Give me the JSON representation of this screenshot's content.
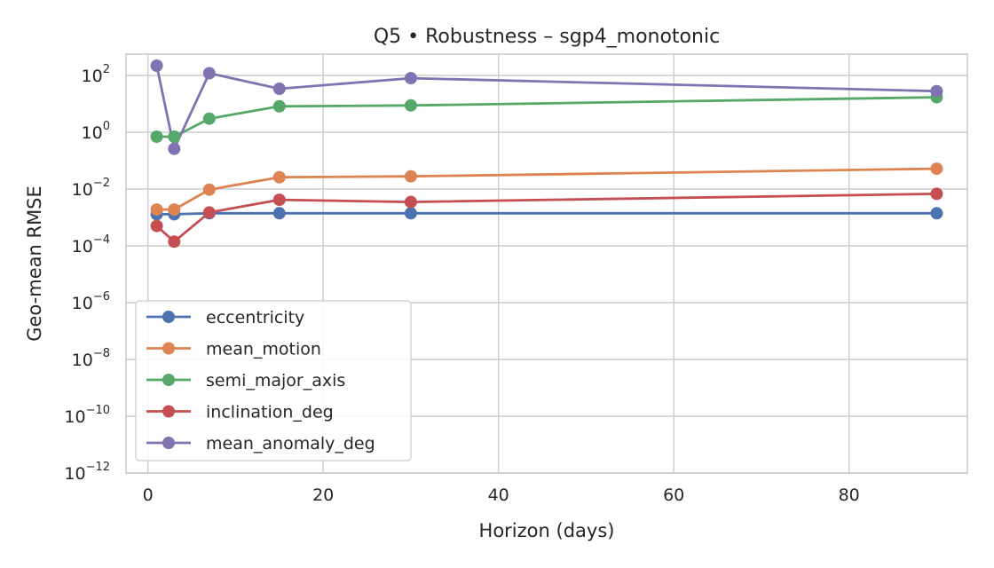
{
  "chart_data": {
    "type": "line",
    "title": "Q5 • Robustness – sgp4_monotonic",
    "xlabel": "Horizon (days)",
    "ylabel": "Geo-mean RMSE",
    "xlim": [
      -2.5,
      93.5
    ],
    "ylim_log10": [
      -12,
      2.75
    ],
    "yscale": "log",
    "grid": true,
    "legend_position": "lower-left",
    "x_ticks": [
      0,
      20,
      40,
      60,
      80
    ],
    "y_ticks_exponent": [
      2,
      0,
      -2,
      -4,
      -6,
      -8,
      -10,
      -12
    ],
    "y_tick_base": "10",
    "x": [
      1,
      3,
      7,
      15,
      30,
      90
    ],
    "series": [
      {
        "name": "eccentricity",
        "color": "#4c72b0",
        "values": [
          0.0013,
          0.0013,
          0.0014,
          0.0014,
          0.0014,
          0.0014
        ]
      },
      {
        "name": "mean_motion",
        "color": "#dd8452",
        "values": [
          0.0019,
          0.0019,
          0.0095,
          0.026,
          0.028,
          0.052
        ]
      },
      {
        "name": "semi_major_axis",
        "color": "#55a868",
        "values": [
          0.7,
          0.7,
          3.0,
          8.2,
          8.8,
          17
        ]
      },
      {
        "name": "inclination_deg",
        "color": "#c44e52",
        "values": [
          0.0005,
          0.00014,
          0.0015,
          0.0042,
          0.0035,
          0.0068
        ]
      },
      {
        "name": "mean_anomaly_deg",
        "color": "#8172b2",
        "values": [
          220,
          0.26,
          120,
          34,
          80,
          28
        ]
      }
    ]
  }
}
